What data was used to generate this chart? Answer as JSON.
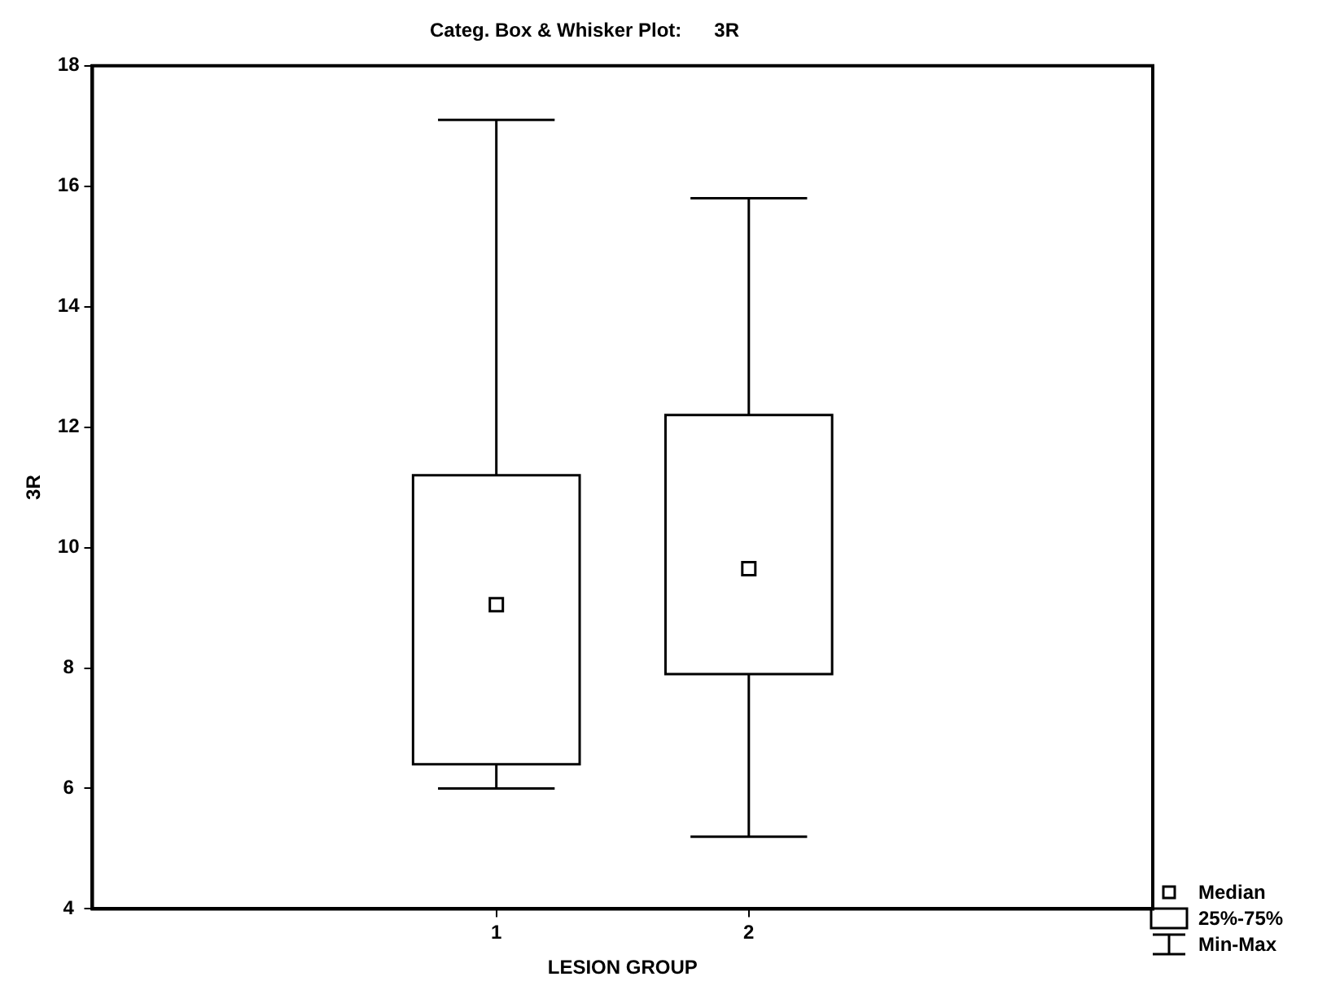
{
  "chart_data": {
    "type": "box",
    "title": "Categ. Box & Whisker Plot:      3R",
    "xlabel": "LESION GROUP",
    "ylabel": "3R",
    "categories": [
      "1",
      "2"
    ],
    "boxes": [
      {
        "low": 6.0,
        "q1": 6.4,
        "median": 9.05,
        "q3": 11.2,
        "high": 17.1
      },
      {
        "low": 5.2,
        "q1": 7.9,
        "median": 9.65,
        "q3": 12.2,
        "high": 15.8
      }
    ],
    "color": "#000000",
    "ylim": [
      4,
      18
    ],
    "yticks": [
      4,
      6,
      8,
      10,
      12,
      14,
      16,
      18
    ],
    "grid": false,
    "annotations": [
      "Median",
      "25%-75%",
      "Min-Max"
    ]
  }
}
